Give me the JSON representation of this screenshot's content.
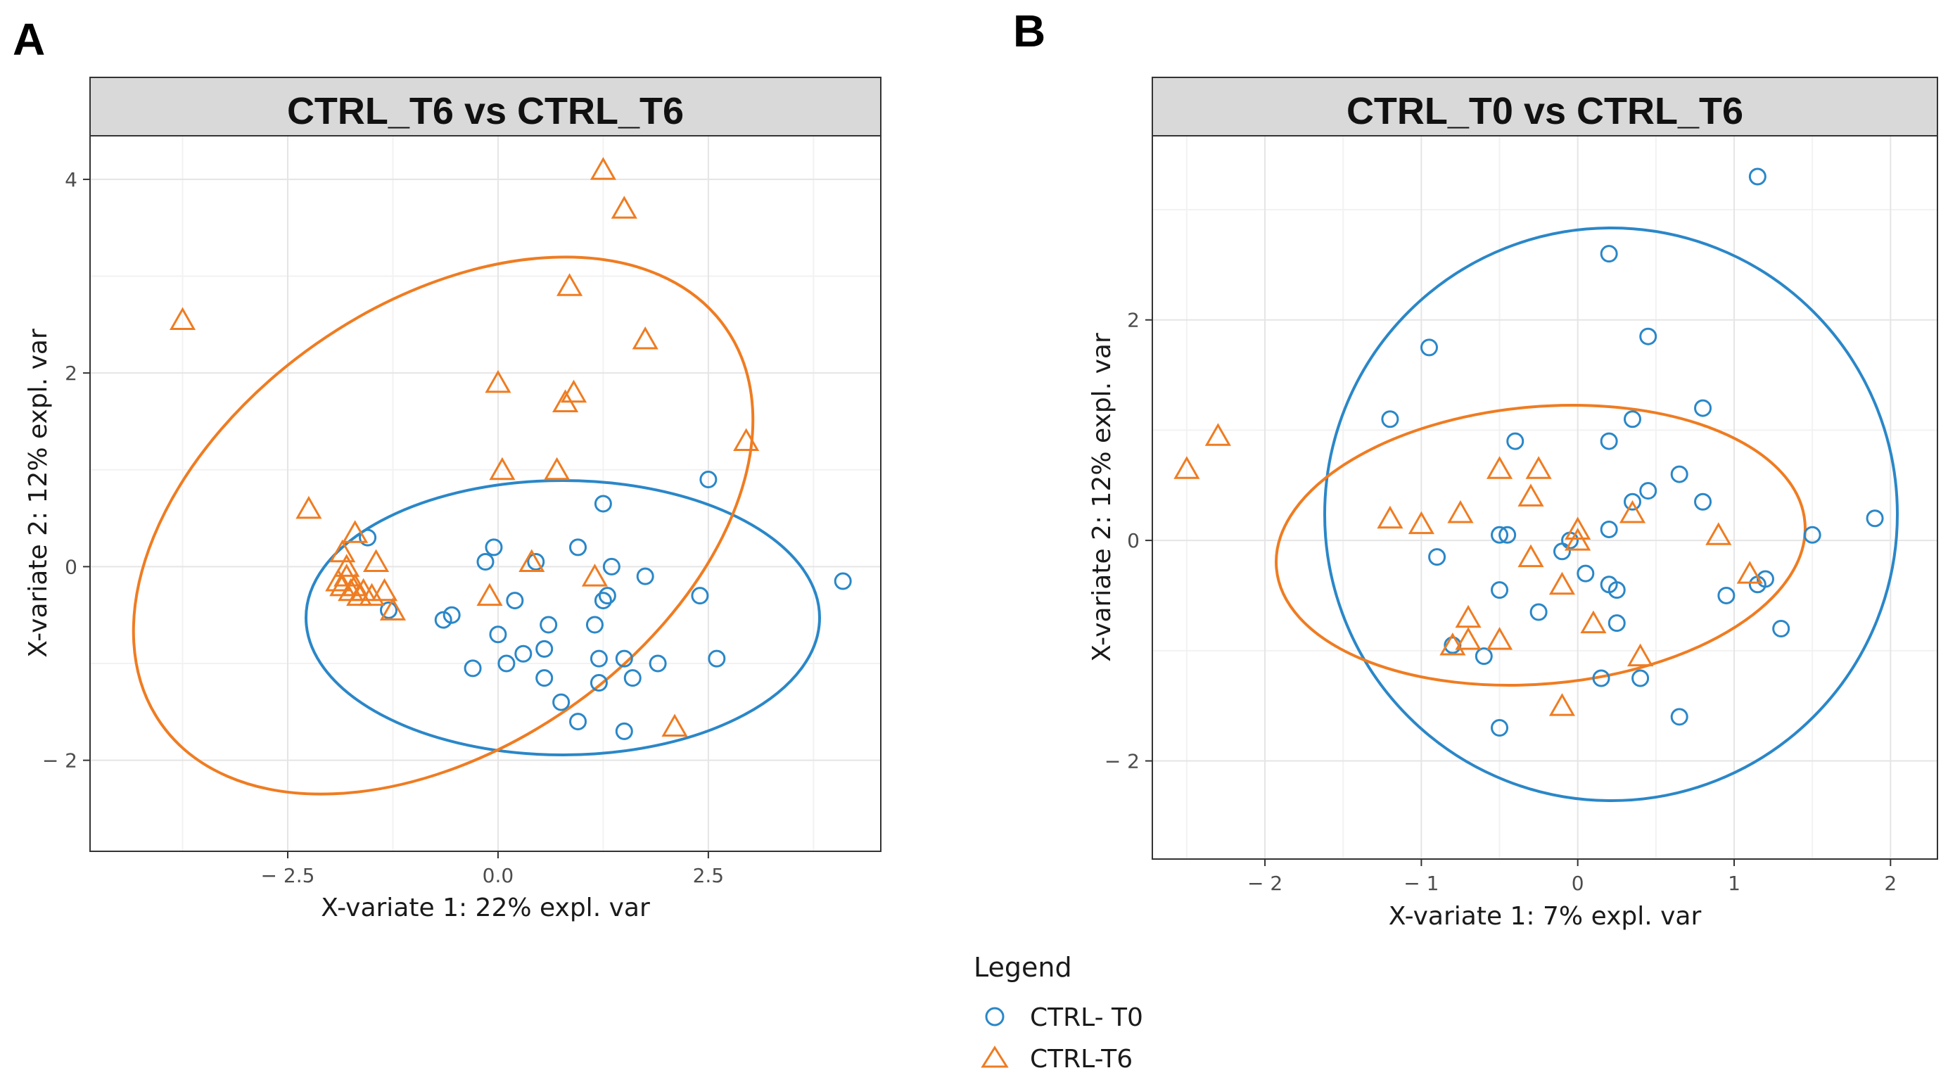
{
  "chart_data": [
    {
      "type": "scatter",
      "panel_label": "A",
      "title": "CTRL_T6 vs CTRL_T6",
      "xlabel": "X-variate 1: 22% expl. var",
      "ylabel": "X-variate 2: 12% expl. var",
      "xlim": [
        -4.85,
        4.55
      ],
      "ylim": [
        -2.94,
        4.45
      ],
      "xticks": [
        -2.5,
        0.0,
        2.5
      ],
      "xtick_labels": [
        "− 2.5",
        "0.0",
        "2.5"
      ],
      "yticks": [
        -2,
        0,
        2,
        4
      ],
      "ytick_labels": [
        "− 2",
        "0",
        "2",
        "4"
      ],
      "grid": true,
      "series": [
        {
          "name": "CTRL- T0",
          "marker": "circle",
          "color": "#2a87c8",
          "points": [
            [
              -1.55,
              0.3
            ],
            [
              -1.3,
              -0.45
            ],
            [
              -0.65,
              -0.55
            ],
            [
              -0.55,
              -0.5
            ],
            [
              -0.15,
              0.05
            ],
            [
              -0.05,
              0.2
            ],
            [
              0.2,
              -0.35
            ],
            [
              0.0,
              -0.7
            ],
            [
              0.1,
              -1.0
            ],
            [
              -0.3,
              -1.05
            ],
            [
              0.3,
              -0.9
            ],
            [
              0.55,
              -0.85
            ],
            [
              0.6,
              -0.6
            ],
            [
              0.45,
              0.05
            ],
            [
              0.55,
              -1.15
            ],
            [
              0.75,
              -1.4
            ],
            [
              0.95,
              -1.6
            ],
            [
              0.95,
              0.2
            ],
            [
              1.15,
              -0.6
            ],
            [
              1.25,
              -0.35
            ],
            [
              1.3,
              -0.3
            ],
            [
              1.35,
              0.0
            ],
            [
              1.25,
              0.65
            ],
            [
              1.2,
              -0.95
            ],
            [
              1.2,
              -1.2
            ],
            [
              1.5,
              -0.95
            ],
            [
              1.6,
              -1.15
            ],
            [
              1.5,
              -1.7
            ],
            [
              1.75,
              -0.1
            ],
            [
              1.9,
              -1.0
            ],
            [
              2.4,
              -0.3
            ],
            [
              2.5,
              0.9
            ],
            [
              2.6,
              -0.95
            ],
            [
              4.1,
              -0.15
            ]
          ]
        },
        {
          "name": "CTRL-T6",
          "marker": "triangle",
          "color": "#ef7c21",
          "points": [
            [
              -3.75,
              2.55
            ],
            [
              -2.25,
              0.6
            ],
            [
              -1.9,
              -0.15
            ],
            [
              -1.85,
              -0.2
            ],
            [
              -1.8,
              -0.1
            ],
            [
              -1.8,
              0.0
            ],
            [
              -1.75,
              -0.25
            ],
            [
              -1.7,
              -0.2
            ],
            [
              -1.65,
              -0.3
            ],
            [
              -1.6,
              -0.25
            ],
            [
              -1.5,
              -0.3
            ],
            [
              -1.45,
              0.05
            ],
            [
              -1.35,
              -0.25
            ],
            [
              -1.25,
              -0.45
            ],
            [
              -1.85,
              0.15
            ],
            [
              -1.7,
              0.35
            ],
            [
              -0.1,
              -0.3
            ],
            [
              0.0,
              1.9
            ],
            [
              0.05,
              1.0
            ],
            [
              0.4,
              0.05
            ],
            [
              0.7,
              1.0
            ],
            [
              0.8,
              1.7
            ],
            [
              0.9,
              1.8
            ],
            [
              0.85,
              2.9
            ],
            [
              1.15,
              -0.1
            ],
            [
              1.25,
              4.1
            ],
            [
              1.5,
              3.7
            ],
            [
              1.75,
              2.35
            ],
            [
              2.1,
              -1.65
            ],
            [
              2.95,
              1.3
            ]
          ]
        }
      ]
    },
    {
      "type": "scatter",
      "panel_label": "B",
      "title": "CTRL_T0 vs CTRL_T6",
      "xlabel": "X-variate 1: 7% expl. var",
      "ylabel": "X-variate 2: 12% expl. var",
      "xlim": [
        -2.72,
        2.3
      ],
      "ylim": [
        -2.89,
        3.67
      ],
      "xticks": [
        -2,
        -1,
        0,
        1,
        2
      ],
      "xtick_labels": [
        "− 2",
        "− 1",
        "0",
        "1",
        "2"
      ],
      "yticks": [
        -2,
        0,
        2
      ],
      "ytick_labels": [
        "− 2",
        "0",
        "2"
      ],
      "grid": true,
      "series": [
        {
          "name": "CTRL- T0",
          "marker": "circle",
          "color": "#2a87c8",
          "points": [
            [
              1.15,
              3.3
            ],
            [
              0.2,
              2.6
            ],
            [
              0.45,
              1.85
            ],
            [
              -0.95,
              1.75
            ],
            [
              -1.2,
              1.1
            ],
            [
              0.35,
              1.1
            ],
            [
              0.8,
              1.2
            ],
            [
              0.2,
              0.9
            ],
            [
              -0.4,
              0.9
            ],
            [
              0.65,
              0.6
            ],
            [
              0.45,
              0.45
            ],
            [
              0.8,
              0.35
            ],
            [
              0.35,
              0.35
            ],
            [
              0.2,
              0.1
            ],
            [
              -0.5,
              0.05
            ],
            [
              -0.45,
              0.05
            ],
            [
              -0.1,
              -0.1
            ],
            [
              -0.05,
              0.0
            ],
            [
              0.05,
              -0.3
            ],
            [
              -0.9,
              -0.15
            ],
            [
              0.2,
              -0.4
            ],
            [
              0.25,
              -0.45
            ],
            [
              -0.5,
              -0.45
            ],
            [
              -0.25,
              -0.65
            ],
            [
              0.25,
              -0.75
            ],
            [
              -0.8,
              -0.95
            ],
            [
              -0.6,
              -1.05
            ],
            [
              0.15,
              -1.25
            ],
            [
              0.4,
              -1.25
            ],
            [
              -0.5,
              -1.7
            ],
            [
              0.65,
              -1.6
            ],
            [
              0.95,
              -0.5
            ],
            [
              1.15,
              -0.4
            ],
            [
              1.2,
              -0.35
            ],
            [
              1.3,
              -0.8
            ],
            [
              1.5,
              0.05
            ],
            [
              1.9,
              0.2
            ]
          ]
        },
        {
          "name": "CTRL-T6",
          "marker": "triangle",
          "color": "#ef7c21",
          "points": [
            [
              -2.5,
              0.65
            ],
            [
              -2.3,
              0.95
            ],
            [
              -1.2,
              0.2
            ],
            [
              -1.0,
              0.15
            ],
            [
              -0.75,
              0.25
            ],
            [
              -0.5,
              0.65
            ],
            [
              -0.3,
              0.4
            ],
            [
              -0.25,
              0.65
            ],
            [
              -0.3,
              -0.15
            ],
            [
              -0.1,
              -0.4
            ],
            [
              0.0,
              0.1
            ],
            [
              0.0,
              0.0
            ],
            [
              0.35,
              0.25
            ],
            [
              -0.7,
              -0.7
            ],
            [
              -0.7,
              -0.9
            ],
            [
              -0.5,
              -0.9
            ],
            [
              -0.8,
              -0.95
            ],
            [
              0.1,
              -0.75
            ],
            [
              0.4,
              -1.05
            ],
            [
              -0.1,
              -1.5
            ],
            [
              0.9,
              0.05
            ],
            [
              1.1,
              -0.3
            ]
          ]
        }
      ]
    }
  ],
  "legend": {
    "title": "Legend",
    "items": [
      {
        "label": "CTRL- T0",
        "marker": "circle",
        "color": "#2a87c8"
      },
      {
        "label": "CTRL-T6",
        "marker": "triangle",
        "color": "#ef7c21"
      }
    ]
  }
}
